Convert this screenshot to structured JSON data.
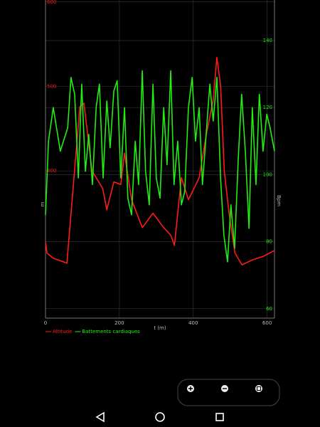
{
  "chart_data": {
    "type": "line",
    "x_label": "t (m)",
    "y_label": "m",
    "y2_label": "Bpm",
    "xlim": [
      0,
      620
    ],
    "xticks": [
      0,
      200,
      400,
      600
    ],
    "ylim": [
      226,
      602
    ],
    "yticks": [
      400,
      500,
      600
    ],
    "y2lim": [
      57.2,
      152.1
    ],
    "y2ticks": [
      60,
      80,
      100,
      120,
      140
    ],
    "grid": true,
    "legend": "bottom-left",
    "series": [
      {
        "name": "Altitude",
        "color": "#ff1a1a",
        "x": [
          0,
          4,
          20,
          58,
          93,
          104,
          126,
          155,
          166,
          185,
          204,
          214,
          233,
          262,
          291,
          320,
          339,
          349,
          368,
          387,
          416,
          435,
          454,
          464,
          474,
          484,
          497,
          513,
          532,
          561,
          590,
          620
        ],
        "values": [
          316,
          303,
          297,
          291,
          476,
          480,
          400,
          379,
          354,
          387,
          384,
          421,
          366,
          333,
          350,
          333,
          324,
          312,
          392,
          366,
          392,
          442,
          484,
          534,
          501,
          400,
          350,
          303,
          289,
          295,
          299,
          306
        ]
      },
      {
        "name": "Battements cardiaques",
        "color": "#22ee11",
        "axis": "y2",
        "x": [
          0,
          8,
          21,
          40,
          60,
          69,
          79,
          89,
          98,
          108,
          117,
          127,
          137,
          146,
          156,
          166,
          175,
          185,
          194,
          204,
          214,
          223,
          233,
          243,
          252,
          262,
          271,
          281,
          291,
          300,
          310,
          320,
          329,
          339,
          348,
          358,
          368,
          377,
          387,
          397,
          406,
          416,
          425,
          435,
          445,
          454,
          464,
          474,
          483,
          493,
          502,
          512,
          522,
          531,
          541,
          551,
          560,
          570,
          579,
          589,
          599,
          608,
          620
        ],
        "values": [
          88,
          110,
          120,
          107,
          114,
          129,
          124,
          99,
          127,
          101,
          112,
          97,
          120,
          127,
          99,
          122,
          108,
          125,
          128,
          99,
          120,
          93,
          88,
          110,
          97,
          131,
          101,
          91,
          127,
          99,
          93,
          120,
          103,
          131,
          97,
          110,
          91,
          95,
          120,
          129,
          110,
          120,
          97,
          112,
          127,
          116,
          129,
          99,
          82,
          74,
          91,
          78,
          105,
          124,
          107,
          84,
          120,
          97,
          124,
          107,
          118,
          114,
          107
        ]
      }
    ]
  }
}
